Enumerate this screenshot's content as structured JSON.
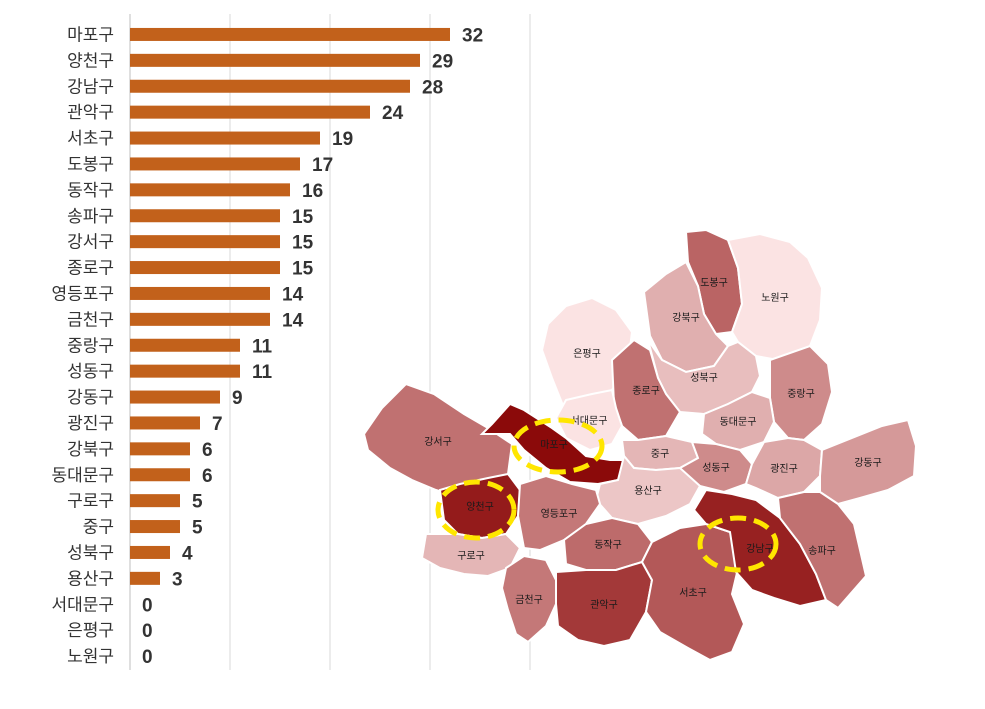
{
  "chart_data": {
    "type": "bar",
    "orientation": "horizontal",
    "categories": [
      "마포구",
      "양천구",
      "강남구",
      "관악구",
      "서초구",
      "도봉구",
      "동작구",
      "송파구",
      "강서구",
      "종로구",
      "영등포구",
      "금천구",
      "중랑구",
      "성동구",
      "강동구",
      "광진구",
      "강북구",
      "동대문구",
      "구로구",
      "중구",
      "성북구",
      "용산구",
      "서대문구",
      "은평구",
      "노원구"
    ],
    "values": [
      32,
      29,
      28,
      24,
      19,
      17,
      16,
      15,
      15,
      15,
      14,
      14,
      11,
      11,
      9,
      7,
      6,
      6,
      5,
      5,
      4,
      3,
      0,
      0,
      0
    ],
    "value_labels": [
      "32",
      "29",
      "28",
      "24",
      "19",
      "17",
      "16",
      "15",
      "15",
      "15",
      "14",
      "14",
      "11",
      "11",
      "9",
      "7",
      "6",
      "6",
      "5",
      "5",
      "4",
      "3",
      "0",
      "0",
      "0"
    ],
    "xlim": [
      0,
      40
    ],
    "grid": true,
    "bar_color": "#c2611b",
    "grid_color": "#d9d9d9",
    "title": "",
    "xlabel": "",
    "ylabel": ""
  },
  "map": {
    "districts": [
      {
        "name": "도봉구",
        "value": 17
      },
      {
        "name": "노원구",
        "value": 0
      },
      {
        "name": "강북구",
        "value": 6
      },
      {
        "name": "은평구",
        "value": 0
      },
      {
        "name": "성북구",
        "value": 4
      },
      {
        "name": "중랑구",
        "value": 11
      },
      {
        "name": "종로구",
        "value": 15
      },
      {
        "name": "서대문구",
        "value": 0
      },
      {
        "name": "동대문구",
        "value": 6
      },
      {
        "name": "강서구",
        "value": 15
      },
      {
        "name": "마포구",
        "value": 32
      },
      {
        "name": "중구",
        "value": 5
      },
      {
        "name": "성동구",
        "value": 11
      },
      {
        "name": "광진구",
        "value": 7
      },
      {
        "name": "강동구",
        "value": 9
      },
      {
        "name": "용산구",
        "value": 3
      },
      {
        "name": "양천구",
        "value": 29
      },
      {
        "name": "영등포구",
        "value": 14
      },
      {
        "name": "구로구",
        "value": 5
      },
      {
        "name": "동작구",
        "value": 16
      },
      {
        "name": "금천구",
        "value": 14
      },
      {
        "name": "관악구",
        "value": 24
      },
      {
        "name": "서초구",
        "value": 19
      },
      {
        "name": "강남구",
        "value": 28
      },
      {
        "name": "송파구",
        "value": 15
      }
    ],
    "highlighted": [
      "마포구",
      "양천구",
      "강남구"
    ],
    "highlight_color": "#ffe600",
    "color_scale": [
      "#fbe3e3",
      "#8b0a0a"
    ]
  }
}
